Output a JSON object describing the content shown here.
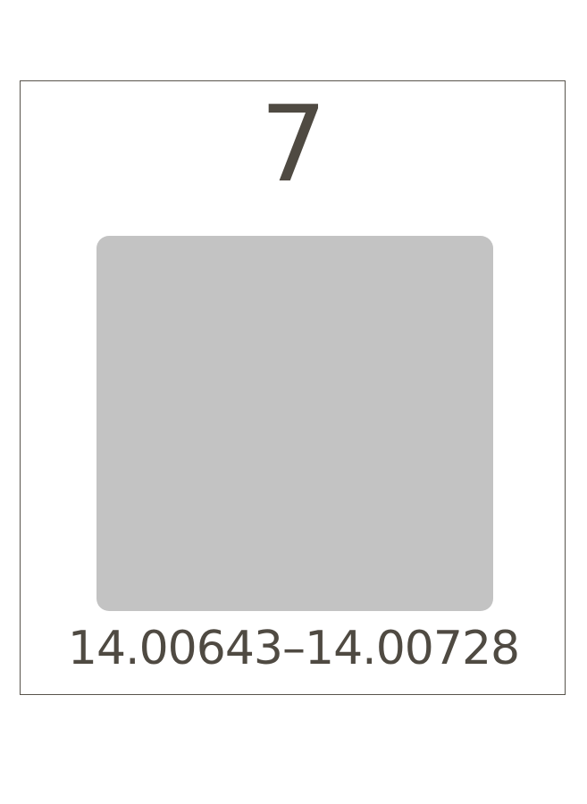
{
  "element_tile": {
    "atomic_number": "7",
    "atomic_weight": "14.00643–14.00728"
  },
  "colors": {
    "text": "#4f4a42",
    "border": "#58544c",
    "symbol_box_fill": "#c3c3c3"
  }
}
